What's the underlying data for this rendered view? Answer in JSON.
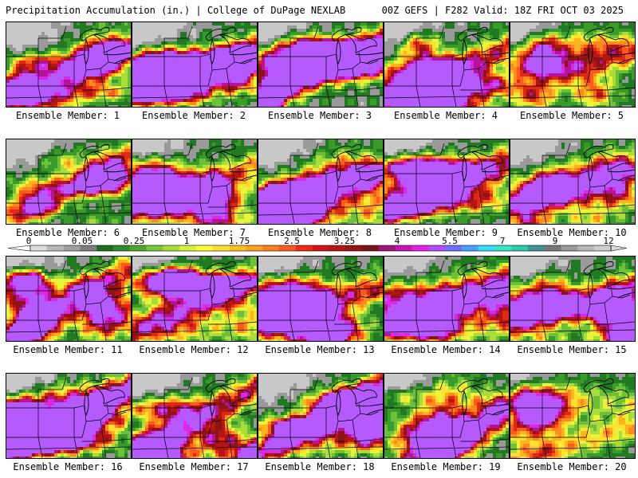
{
  "header": {
    "title": "Precipitation Accumulation (in.) | College of DuPage NEXLAB",
    "run": "00Z GEFS | F282 Valid: 18Z FRI OCT 03 2025"
  },
  "colorbar": {
    "tick_labels": [
      "0",
      "0.05",
      "0.25",
      "1",
      "1.75",
      "2.5",
      "3.25",
      "4",
      "5.5",
      "7",
      "9",
      "12"
    ],
    "colors": [
      "#dcdcdc",
      "#b9b9b9",
      "#a0a0a0",
      "#7d7d7d",
      "#1c6e1c",
      "#2e8b2e",
      "#4ea62e",
      "#7cc63a",
      "#a9dd3a",
      "#d8f23a",
      "#ffff2e",
      "#ffe02e",
      "#ffc01e",
      "#ffa01e",
      "#ff7e1e",
      "#ff5a1e",
      "#ee2a14",
      "#d21414",
      "#b41414",
      "#961414",
      "#7a1414",
      "#a0147a",
      "#c814b4",
      "#e61ee6",
      "#b44bff",
      "#6e6eff",
      "#4aa0ff",
      "#32dcff",
      "#32e6c8",
      "#2fcba8",
      "#3c9696",
      "#787878",
      "#9a9a9a",
      "#b8b8b8",
      "#cfcfcf"
    ]
  },
  "panels": [
    {
      "label": "Ensemble Member: 1",
      "intensity": 0.55,
      "seed": 11
    },
    {
      "label": "Ensemble Member: 2",
      "intensity": 0.75,
      "seed": 23
    },
    {
      "label": "Ensemble Member: 3",
      "intensity": 0.7,
      "seed": 37
    },
    {
      "label": "Ensemble Member: 4",
      "intensity": 0.6,
      "seed": 41
    },
    {
      "label": "Ensemble Member: 5",
      "intensity": 0.45,
      "seed": 53
    },
    {
      "label": "Ensemble Member: 6",
      "intensity": 0.5,
      "seed": 67
    },
    {
      "label": "Ensemble Member: 7",
      "intensity": 0.5,
      "seed": 71
    },
    {
      "label": "Ensemble Member: 8",
      "intensity": 0.6,
      "seed": 83
    },
    {
      "label": "Ensemble Member: 9",
      "intensity": 0.6,
      "seed": 97
    },
    {
      "label": "Ensemble Member: 10",
      "intensity": 0.55,
      "seed": 101
    },
    {
      "label": "Ensemble Member: 11",
      "intensity": 0.6,
      "seed": 113
    },
    {
      "label": "Ensemble Member: 12",
      "intensity": 0.6,
      "seed": 127
    },
    {
      "label": "Ensemble Member: 13",
      "intensity": 0.6,
      "seed": 131
    },
    {
      "label": "Ensemble Member: 14",
      "intensity": 0.6,
      "seed": 149
    },
    {
      "label": "Ensemble Member: 15",
      "intensity": 0.6,
      "seed": 151
    },
    {
      "label": "Ensemble Member: 16",
      "intensity": 0.8,
      "seed": 163
    },
    {
      "label": "Ensemble Member: 17",
      "intensity": 0.65,
      "seed": 173
    },
    {
      "label": "Ensemble Member: 18",
      "intensity": 0.7,
      "seed": 181
    },
    {
      "label": "Ensemble Member: 19",
      "intensity": 0.6,
      "seed": 191
    },
    {
      "label": "Ensemble Member: 20",
      "intensity": 0.4,
      "seed": 199
    }
  ]
}
